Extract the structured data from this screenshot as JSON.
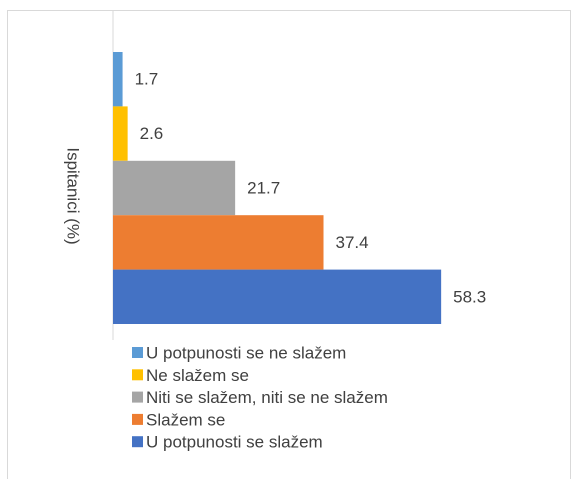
{
  "chart_data": {
    "type": "bar",
    "orientation": "horizontal",
    "ylabel": "Ispitanici (%)",
    "xlim": [
      0,
      70
    ],
    "series": [
      {
        "name": "U potpunosti se ne slažem",
        "color": "#5b9bd5",
        "values": [
          1.7
        ]
      },
      {
        "name": "Ne slažem se",
        "color": "#ffc000",
        "values": [
          2.6
        ]
      },
      {
        "name": "Niti se slažem, niti se ne slažem",
        "color": "#a5a5a5",
        "values": [
          21.7
        ]
      },
      {
        "name": "Slažem se",
        "color": "#ed7d31",
        "values": [
          37.4
        ]
      },
      {
        "name": "U potpunosti se slažem",
        "color": "#4472c4",
        "values": [
          58.3
        ]
      }
    ]
  }
}
